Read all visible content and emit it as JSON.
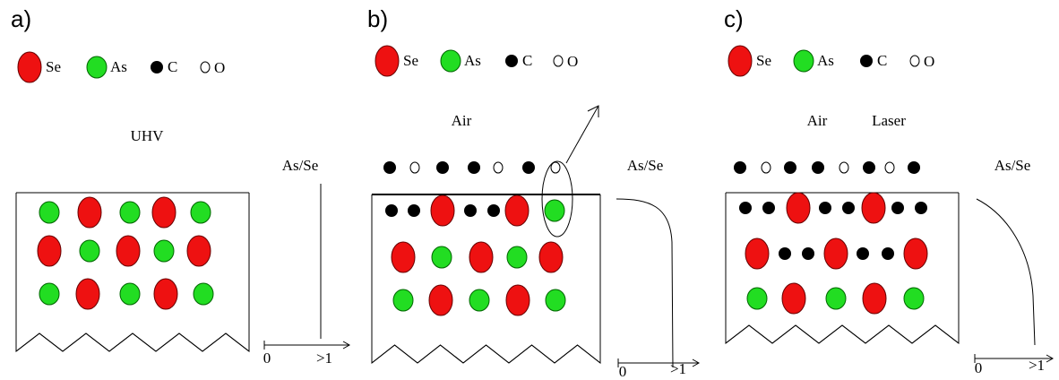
{
  "panels": [
    {
      "label": "a)",
      "legend": [
        "Se",
        "As",
        "C",
        "O"
      ],
      "conditions": [
        "UHV"
      ],
      "profile": {
        "label": "As/Se",
        "axis_min": 0,
        "axis_max": ">1"
      }
    },
    {
      "label": "b)",
      "legend": [
        "Se",
        "As",
        "C",
        "O"
      ],
      "conditions": [
        "Air"
      ],
      "profile": {
        "label": "As/Se",
        "axis_min": 0,
        "axis_max": ">1"
      }
    },
    {
      "label": "c)",
      "legend": [
        "Se",
        "As",
        "C",
        "O"
      ],
      "conditions": [
        "Air",
        "Laser"
      ],
      "profile": {
        "label": "As/Se",
        "axis_min": 0,
        "axis_max": ">1"
      }
    }
  ]
}
